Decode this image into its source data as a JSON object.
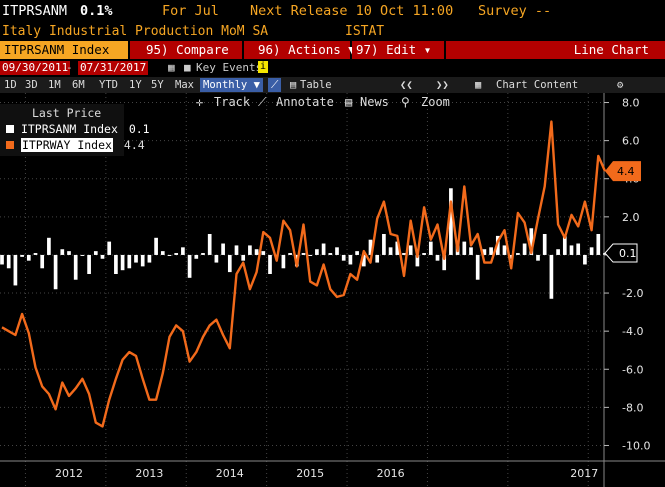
{
  "header": {
    "ticker": "ITPRSANM",
    "value": "0.1%",
    "for_label": "For Jul",
    "next_release": "Next Release 10 Oct 11:00",
    "survey": "Survey --"
  },
  "subheader": {
    "description": "Italy Industrial Production MoM SA",
    "source": "ISTAT"
  },
  "toolbar": {
    "index_label": "ITPRSANM Index",
    "compare_label": "95) Compare",
    "actions_label": "96) Actions ▼",
    "edit_label": "97) Edit ▾",
    "chart_type": "Line Chart"
  },
  "range": {
    "start": "09/30/2011",
    "end": "07/31/2017",
    "key_events": "Key Events"
  },
  "periods": [
    "1D",
    "3D",
    "1M",
    "6M",
    "YTD",
    "1Y",
    "5Y",
    "Max"
  ],
  "frequency": "Monthly ▼",
  "table_label": "Table",
  "chart_content_label": "Chart Content",
  "tools": {
    "track": "Track",
    "annotate": "Annotate",
    "news": "News",
    "zoom": "Zoom"
  },
  "legend": {
    "title": "Last Price",
    "items": [
      {
        "name": "ITPRSANM Index",
        "value": "0.1",
        "color": "#ffffff"
      },
      {
        "name": "ITPRWAY Index",
        "value": "4.4",
        "color": "#f26a1b"
      }
    ]
  },
  "colors": {
    "background": "#000000",
    "accent_orange": "#f6a623",
    "bar_color": "#ffffff",
    "line_color": "#f26a1b",
    "header_red": "#b30000"
  },
  "chart_data": {
    "type": "bar",
    "x_start": "2011-09",
    "x_end": "2017-07",
    "frequency": "monthly",
    "xticks": [
      "2012",
      "2013",
      "2014",
      "2015",
      "2016",
      "2017"
    ],
    "yticks": [
      "8.0",
      "6.0",
      "4.0",
      "2.0",
      "",
      "-2.0",
      "-4.0",
      "-6.0",
      "-8.0",
      "-10.0"
    ],
    "ylim": [
      -10.5,
      8.5
    ],
    "grid": true,
    "legend_position": "top-left",
    "last_values": {
      "ITPRSANM Index": "0.1",
      "ITPRWAY Index": "4.4"
    },
    "series": [
      {
        "name": "ITPRSANM Index",
        "type": "bar",
        "values": [
          -0.5,
          -0.7,
          -1.6,
          -0.1,
          -0.3,
          0.1,
          -0.7,
          0.9,
          -1.8,
          0.3,
          0.2,
          -1.3,
          0.0,
          -1.0,
          0.2,
          -0.2,
          0.7,
          -1.0,
          -0.8,
          -0.7,
          -0.4,
          -0.6,
          -0.4,
          0.9,
          0.2,
          0.0,
          0.1,
          0.4,
          -1.2,
          -0.2,
          0.1,
          1.1,
          -0.4,
          0.6,
          -0.9,
          0.5,
          -0.3,
          0.5,
          0.3,
          0.2,
          -1.0,
          -0.1,
          -0.7,
          0.1,
          -0.6,
          0.1,
          0.0,
          0.3,
          0.6,
          0.1,
          0.4,
          -0.3,
          -0.5,
          0.2,
          -0.6,
          0.8,
          -0.4,
          1.1,
          0.4,
          0.7,
          0.1,
          0.5,
          -0.6,
          0.1,
          0.7,
          -0.3,
          -0.8,
          3.5,
          0.5,
          0.7,
          0.4,
          -1.3,
          0.3,
          0.4,
          1.0,
          0.5,
          -0.2,
          0.1,
          0.6,
          1.4,
          -0.3,
          1.1,
          -2.3,
          0.3,
          1.0,
          0.5,
          0.6,
          -0.5,
          0.4,
          1.1,
          0.1
        ]
      },
      {
        "name": "ITPRWAY Index",
        "type": "line",
        "values": [
          -3.8,
          -4.0,
          -4.2,
          -3.1,
          -4.1,
          -5.9,
          -6.9,
          -7.3,
          -8.1,
          -6.7,
          -7.4,
          -7.0,
          -6.5,
          -7.3,
          -8.8,
          -9.0,
          -7.6,
          -6.5,
          -5.5,
          -5.1,
          -5.3,
          -6.5,
          -7.6,
          -7.6,
          -6.2,
          -4.3,
          -3.7,
          -4.0,
          -5.6,
          -5.1,
          -4.3,
          -3.7,
          -3.4,
          -4.2,
          -4.9,
          -1.0,
          -0.4,
          -1.8,
          -0.9,
          1.2,
          0.9,
          -0.3,
          1.8,
          1.3,
          -0.6,
          1.6,
          -1.4,
          -1.6,
          -0.5,
          -1.8,
          -2.2,
          -2.1,
          -1.0,
          -1.3,
          0.2,
          -0.4,
          1.9,
          2.8,
          1.1,
          1.0,
          -1.1,
          1.8,
          -0.1,
          2.5,
          0.8,
          1.6,
          -0.2,
          2.8,
          0.2,
          3.6,
          0.5,
          1.1,
          -0.4,
          -0.4,
          0.7,
          1.3,
          -0.7,
          2.2,
          1.7,
          0.1,
          1.9,
          3.6,
          7.0,
          1.6,
          0.9,
          2.1,
          1.5,
          2.8,
          1.3,
          5.2,
          4.4
        ]
      }
    ]
  }
}
